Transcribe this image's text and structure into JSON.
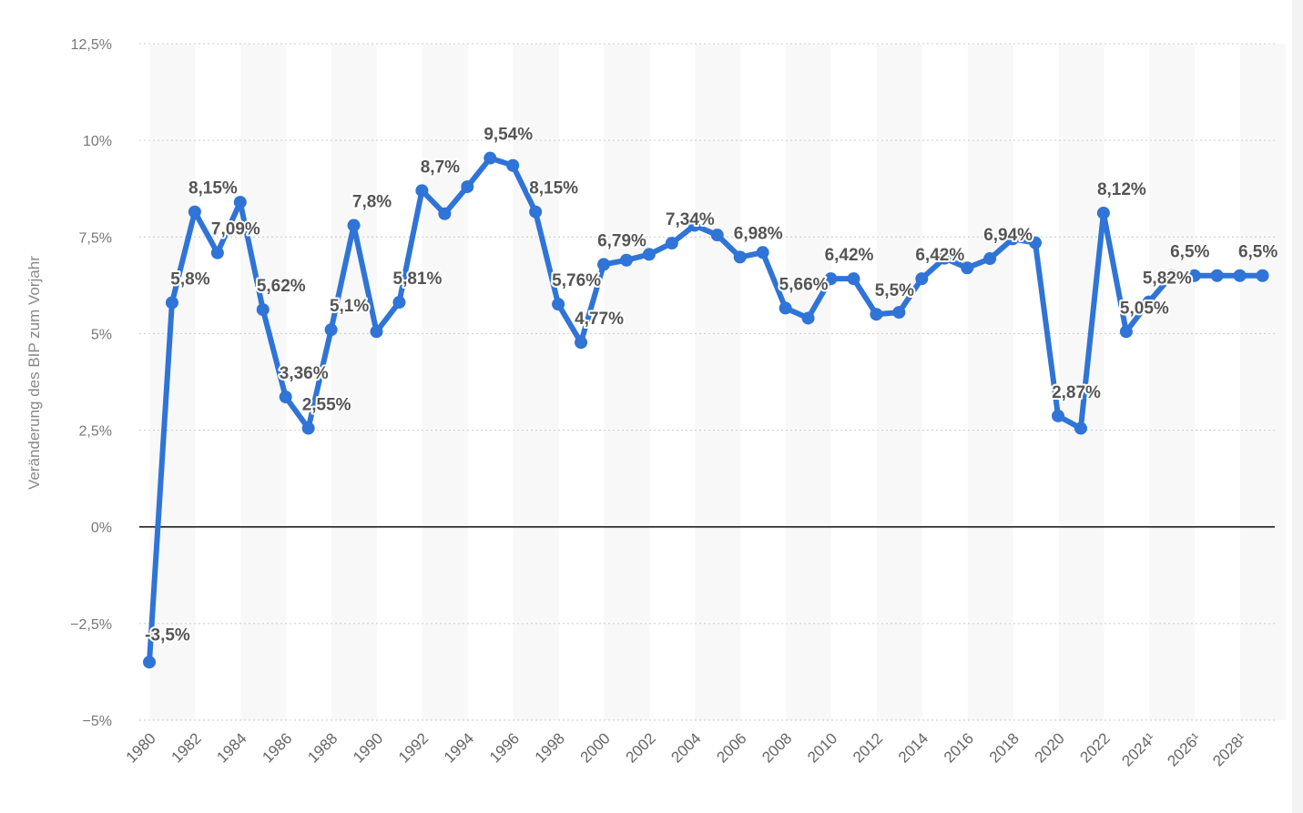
{
  "chart_data": {
    "type": "line",
    "title": "",
    "xlabel": "",
    "ylabel": "Veränderung des BIP zum Vorjahr",
    "ylim": [
      -5,
      12.5
    ],
    "yticks": [
      -5,
      -2.5,
      0,
      2.5,
      5,
      7.5,
      10,
      12.5
    ],
    "ytick_labels": [
      "−5%",
      "−2,5%",
      "0%",
      "2,5%",
      "5%",
      "7,5%",
      "10%",
      "12,5%"
    ],
    "x": [
      "1980",
      "1981",
      "1982",
      "1983",
      "1984",
      "1985",
      "1986",
      "1987",
      "1988",
      "1989",
      "1990",
      "1991",
      "1992",
      "1993",
      "1994",
      "1995",
      "1996",
      "1997",
      "1998",
      "1999",
      "2000",
      "2001",
      "2002",
      "2003",
      "2004",
      "2005",
      "2006",
      "2007",
      "2008",
      "2009",
      "2010",
      "2011",
      "2012",
      "2013",
      "2014",
      "2015",
      "2016",
      "2017",
      "2018",
      "2019",
      "2020",
      "2021",
      "2022",
      "2023",
      "2024",
      "2025",
      "2026",
      "2027",
      "2028",
      "2029"
    ],
    "xtick_labels": [
      "1980",
      "1982",
      "1984",
      "1986",
      "1988",
      "1990",
      "1992",
      "1994",
      "1996",
      "1998",
      "2000",
      "2002",
      "2004",
      "2006",
      "2008",
      "2010",
      "2012",
      "2014",
      "2016",
      "2018",
      "2020",
      "2022",
      "2024¹",
      "2026¹",
      "2028¹"
    ],
    "series": [
      {
        "name": "",
        "color": "#2f74d6",
        "values": [
          -3.5,
          5.8,
          8.15,
          7.09,
          8.4,
          5.62,
          3.36,
          2.55,
          5.1,
          7.8,
          5.05,
          5.81,
          8.7,
          8.1,
          8.8,
          9.54,
          9.35,
          8.15,
          5.76,
          4.77,
          6.79,
          6.9,
          7.05,
          7.34,
          7.8,
          7.55,
          6.98,
          7.1,
          5.66,
          5.4,
          6.42,
          6.42,
          5.5,
          5.55,
          6.42,
          6.95,
          6.7,
          6.94,
          7.45,
          7.35,
          2.87,
          2.55,
          8.12,
          5.05,
          5.82,
          6.5,
          6.5,
          6.5,
          6.5,
          6.5
        ]
      }
    ],
    "data_labels": [
      {
        "i": 0,
        "text": "-3,5%"
      },
      {
        "i": 1,
        "text": "5,8%"
      },
      {
        "i": 2,
        "text": "8,15%"
      },
      {
        "i": 3,
        "text": "7,09%"
      },
      {
        "i": 5,
        "text": "5,62%"
      },
      {
        "i": 6,
        "text": "3,36%"
      },
      {
        "i": 7,
        "text": "2,55%"
      },
      {
        "i": 8,
        "text": "5,1%"
      },
      {
        "i": 9,
        "text": "7,8%"
      },
      {
        "i": 11,
        "text": "5,81%"
      },
      {
        "i": 12,
        "text": "8,7%"
      },
      {
        "i": 15,
        "text": "9,54%"
      },
      {
        "i": 17,
        "text": "8,15%"
      },
      {
        "i": 18,
        "text": "5,76%"
      },
      {
        "i": 19,
        "text": "4,77%"
      },
      {
        "i": 20,
        "text": "6,79%"
      },
      {
        "i": 23,
        "text": "7,34%"
      },
      {
        "i": 26,
        "text": "6,98%"
      },
      {
        "i": 28,
        "text": "5,66%"
      },
      {
        "i": 30,
        "text": "6,42%"
      },
      {
        "i": 32,
        "text": "5,5%"
      },
      {
        "i": 34,
        "text": "6,42%"
      },
      {
        "i": 37,
        "text": "6,94%"
      },
      {
        "i": 40,
        "text": "2,87%"
      },
      {
        "i": 42,
        "text": "8,12%"
      },
      {
        "i": 43,
        "text": "5,05%"
      },
      {
        "i": 44,
        "text": "5,82%"
      },
      {
        "i": 45,
        "text": "6,5%"
      },
      {
        "i": 48,
        "text": "6,5%"
      }
    ],
    "grid": true,
    "legend": "none"
  }
}
